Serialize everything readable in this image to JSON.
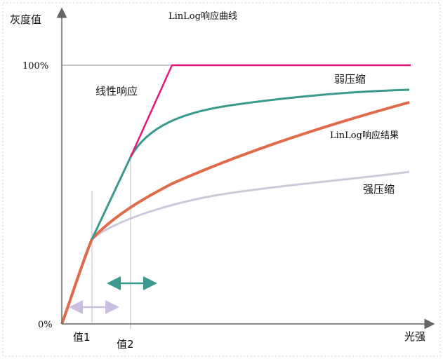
{
  "title": "LinLog响应曲线",
  "y_axis_label": "灰度值",
  "x_axis_label": "光强",
  "y_tick_top": "100%",
  "y_tick_bottom": "0%",
  "x_marker_1": "值1",
  "x_marker_2": "值2",
  "curves": {
    "linear": "线性响应",
    "weak": "弱压缩",
    "result": "LinLog响应结果",
    "strong": "强压缩"
  },
  "colors": {
    "linear": "#e6187a",
    "weak": "#3a9a8e",
    "result": "#e06a4a",
    "strong": "#cfc8dc",
    "reference": "#c8c8c8",
    "teal_arrow": "#3a9a8e",
    "lavender_arrow": "#cbbfe0",
    "border": "#d6e4ef"
  }
}
